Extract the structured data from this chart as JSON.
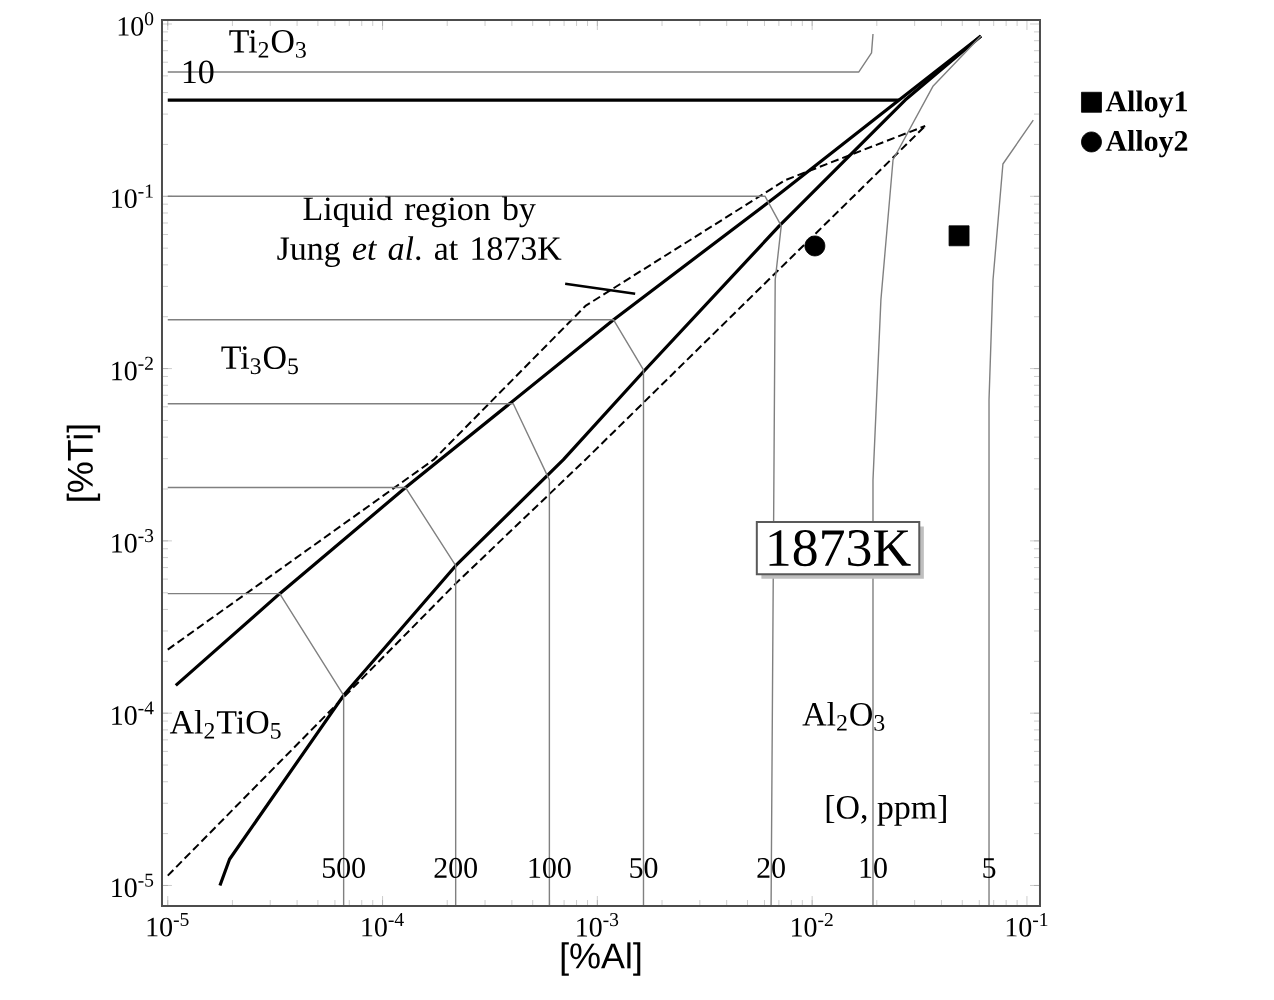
{
  "chart_data": {
    "type": "line",
    "xlabel": "[%Al]",
    "ylabel": "[%Ti]",
    "log": "xy",
    "legend": "right",
    "xlim": [
      9.4e-06,
      0.115
    ],
    "ylim": [
      7.6e-06,
      1.055
    ],
    "xticks": [
      {
        "value": 1e-05,
        "label": "10$^{-5}$"
      },
      {
        "value": 0.0001,
        "label": "10$^{-4}$"
      },
      {
        "value": 0.001,
        "label": "10$^{-3}$"
      },
      {
        "value": 0.01,
        "label": "10$^{-2}$"
      },
      {
        "value": 0.1,
        "label": "10$^{-1}$"
      }
    ],
    "yticks": [
      {
        "value": 1e-05,
        "label": "10$^{-5}$"
      },
      {
        "value": 0.0001,
        "label": "10$^{-4}$"
      },
      {
        "value": 0.001,
        "label": "10$^{-3}$"
      },
      {
        "value": 0.01,
        "label": "10$^{-2}$"
      },
      {
        "value": 0.1,
        "label": "10$^{-1}$"
      },
      {
        "value": 1,
        "label": "10$^{0}$"
      }
    ],
    "series": [
      {
        "color": "#000000",
        "x": [
          1e-05,
          0.0254
        ],
        "values": [
          0.362,
          0.362
        ]
      },
      {
        "color": "#000000",
        "x": [
          1.09e-05,
          3.32e-05,
          0.000128,
          0.00119,
          0.00703,
          0.0254,
          0.0611
        ],
        "values": [
          0.000145,
          0.000494,
          0.00204,
          0.0192,
          0.103,
          0.362,
          0.851
        ]
      },
      {
        "color": "#000000",
        "x": [
          1.75e-05,
          1.94e-05,
          6.59e-05,
          0.000219,
          0.000695,
          0.00167,
          0.00703,
          0.0271,
          0.0611
        ],
        "values": [
          1e-05,
          1.42e-05,
          0.000127,
          0.000718,
          0.00296,
          0.00984,
          0.0673,
          0.362,
          0.851
        ]
      },
      {
        "color": "#000000",
        "line_style": "dashed",
        "x": [
          1e-05,
          0.000173,
          0.00088,
          0.00749,
          0.0336
        ],
        "values": [
          0.000234,
          0.00296,
          0.0231,
          0.124,
          0.256
        ]
      },
      {
        "color": "#000000",
        "line_style": "dashed",
        "x": [
          1e-05,
          0.000219,
          0.00088,
          0.0336
        ],
        "values": [
          1.14e-05,
          0.000565,
          0.00296,
          0.256
        ]
      },
      {
        "color": "#808080",
        "x": [
          1e-05,
          0.0165,
          0.0189,
          0.0192
        ],
        "values": [
          0.527,
          0.527,
          0.68,
          0.875
        ]
      },
      {
        "name": "500",
        "color": "#808080",
        "x": [
          6.59e-05,
          6.59e-05,
          3.32e-05,
          1e-05
        ],
        "values": [
          7.7e-06,
          0.000127,
          0.000494,
          0.000494
        ]
      },
      {
        "name": "200",
        "color": "#808080",
        "x": [
          0.000219,
          0.000219,
          0.000128,
          1e-05
        ],
        "values": [
          7.7e-06,
          0.000718,
          0.00204,
          0.00204
        ]
      },
      {
        "name": "100",
        "color": "#808080",
        "x": [
          0.000598,
          0.000598,
          0.000406,
          1e-05
        ],
        "values": [
          7.7e-06,
          0.00226,
          0.00625,
          0.00625
        ]
      },
      {
        "name": "50",
        "color": "#808080",
        "x": [
          0.00164,
          0.00164,
          0.00119,
          1e-05
        ],
        "values": [
          7.7e-06,
          0.00984,
          0.0192,
          0.0192
        ]
      },
      {
        "name": "20",
        "color": "#808080",
        "x": [
          0.00644,
          0.00673,
          0.00718,
          0.00604,
          1e-05
        ],
        "values": [
          7.7e-06,
          0.0327,
          0.0673,
          0.1,
          0.1
        ]
      },
      {
        "name": "10",
        "color": "#808080",
        "x": [
          0.0192,
          0.0192,
          0.0209,
          0.0238,
          0.0366,
          0.0611
        ],
        "values": [
          7.7e-06,
          0.00226,
          0.0251,
          0.163,
          0.437,
          0.851
        ]
      },
      {
        "name": "5",
        "color": "#808080",
        "x": [
          0.0666,
          0.0666,
          0.0695,
          0.0773,
          0.107
        ],
        "values": [
          7.7e-06,
          0.00659,
          0.0327,
          0.154,
          0.277
        ]
      },
      {
        "type": "scatter",
        "name": "Alloy1",
        "color": "#000000",
        "marker": "square",
        "x": [
          0.0483
        ],
        "values": [
          0.059
        ]
      },
      {
        "type": "scatter",
        "name": "Alloy2",
        "color": "#000000",
        "marker": "circle",
        "x": [
          0.0103
        ],
        "values": [
          0.0515
        ]
      }
    ],
    "annotations": [
      "Ti$_{2}$O$_{3}$",
      {
        "text": "10",
        "x": 1.38e-05,
        "y": 0.527
      },
      {
        "text": "Liquid region by Jung *et al*. at 1873K",
        "x": 0.0015,
        "y": 0.0272
      },
      "Ti$_{3}$O$_{5}$",
      "1873K",
      "Al$_{2}$TiO$_{5}$",
      "Al$_{2}$O$_{3}$",
      "[O, ppm]"
    ]
  }
}
